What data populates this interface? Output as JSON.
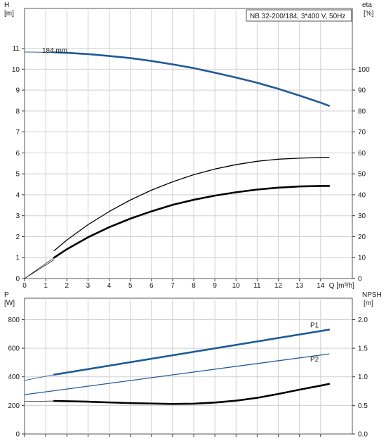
{
  "chart_data": [
    {
      "type": "line",
      "title": "NB 32-200/184, 3*400 V, 50Hz",
      "xlabel": "Q [m³/h]",
      "ylabel": "H",
      "ylabel_unit": "[m]",
      "y2label": "eta",
      "y2label_unit": "[%]",
      "xlim": [
        0,
        15.5
      ],
      "ylim": [
        0,
        12.9
      ],
      "y2lim": [
        0,
        129
      ],
      "x_ticks": [
        0,
        1,
        2,
        3,
        4,
        5,
        6,
        7,
        8,
        9,
        10,
        11,
        12,
        13,
        14
      ],
      "y_ticks": [
        0,
        1,
        2,
        3,
        4,
        5,
        6,
        7,
        8,
        9,
        10,
        11
      ],
      "y2_ticks": [
        0,
        10,
        20,
        30,
        40,
        50,
        60,
        70,
        80,
        90,
        100
      ],
      "grid": true,
      "annotation": "184 mm",
      "series": [
        {
          "axis": "left",
          "color": "#1f5a96",
          "style": "extension",
          "x": [
            0,
            1.4
          ],
          "y": [
            10.82,
            10.8
          ]
        },
        {
          "axis": "left",
          "color": "#1f5a96",
          "style": "main",
          "x": [
            1.4,
            2,
            3,
            4,
            5,
            6,
            7,
            8,
            9,
            10,
            11,
            12,
            13,
            14,
            14.4
          ],
          "y": [
            10.8,
            10.78,
            10.72,
            10.63,
            10.53,
            10.39,
            10.23,
            10.05,
            9.83,
            9.6,
            9.35,
            9.06,
            8.74,
            8.4,
            8.25
          ]
        },
        {
          "axis": "right",
          "color": "#000000",
          "style": "thin-extension",
          "x": [
            0,
            1.4
          ],
          "y": [
            0,
            10
          ]
        },
        {
          "axis": "right",
          "color": "#000000",
          "style": "thin",
          "x": [
            1.4,
            2,
            3,
            4,
            5,
            6,
            7,
            8,
            9,
            10,
            11,
            12,
            13,
            14,
            14.4
          ],
          "y": [
            13.3,
            18.4,
            25.7,
            32.0,
            37.5,
            42.2,
            46.2,
            49.6,
            52.3,
            54.4,
            56.0,
            57.0,
            57.5,
            57.8,
            57.9
          ]
        },
        {
          "axis": "right",
          "color": "#000000",
          "style": "thin-extension",
          "x": [
            0,
            1.4
          ],
          "y": [
            0,
            9
          ]
        },
        {
          "axis": "right",
          "color": "#000000",
          "style": "main",
          "x": [
            1.4,
            2,
            3,
            4,
            5,
            6,
            7,
            8,
            9,
            10,
            11,
            12,
            13,
            14,
            14.4
          ],
          "y": [
            10.0,
            14.0,
            19.7,
            24.5,
            28.6,
            32.1,
            35.2,
            37.6,
            39.6,
            41.2,
            42.5,
            43.4,
            44.0,
            44.2,
            44.2
          ]
        }
      ]
    },
    {
      "type": "line",
      "xlabel": "",
      "ylabel": "P",
      "ylabel_unit": "[W]",
      "y2label": "NPSH",
      "y2label_unit": "[m]",
      "xlim": [
        0,
        15.5
      ],
      "ylim": [
        0,
        950
      ],
      "y2lim": [
        0,
        2.375
      ],
      "y_ticks": [
        0,
        200,
        400,
        600,
        800
      ],
      "y2_ticks": [
        0.0,
        0.5,
        1.0,
        1.5,
        2.0
      ],
      "y2_tick_labels": [
        "0.0",
        "0.5",
        "1.0",
        "1.5",
        "2.0"
      ],
      "grid": true,
      "series": [
        {
          "name": "P1",
          "axis": "left",
          "color": "#1f5a96",
          "style": "extension",
          "x": [
            0,
            1.4
          ],
          "y": [
            375,
            415
          ]
        },
        {
          "name": "P1",
          "axis": "left",
          "color": "#1f5a96",
          "style": "main",
          "x": [
            1.4,
            14.4
          ],
          "y": [
            415,
            730
          ]
        },
        {
          "name": "P2",
          "axis": "left",
          "color": "#1f5a96",
          "style": "thin",
          "x": [
            0,
            14.4
          ],
          "y": [
            275,
            560
          ]
        },
        {
          "axis": "right",
          "color": "#000000",
          "style": "thin-extension",
          "x": [
            0,
            1.4
          ],
          "y": [
            0.57,
            0.577
          ]
        },
        {
          "axis": "right",
          "color": "#000000",
          "style": "main",
          "x": [
            1.4,
            3,
            5,
            7,
            8,
            9,
            10,
            11,
            12,
            13,
            14,
            14.4
          ],
          "y": [
            0.577,
            0.565,
            0.54,
            0.525,
            0.53,
            0.55,
            0.582,
            0.632,
            0.7,
            0.775,
            0.845,
            0.875
          ]
        }
      ]
    }
  ]
}
